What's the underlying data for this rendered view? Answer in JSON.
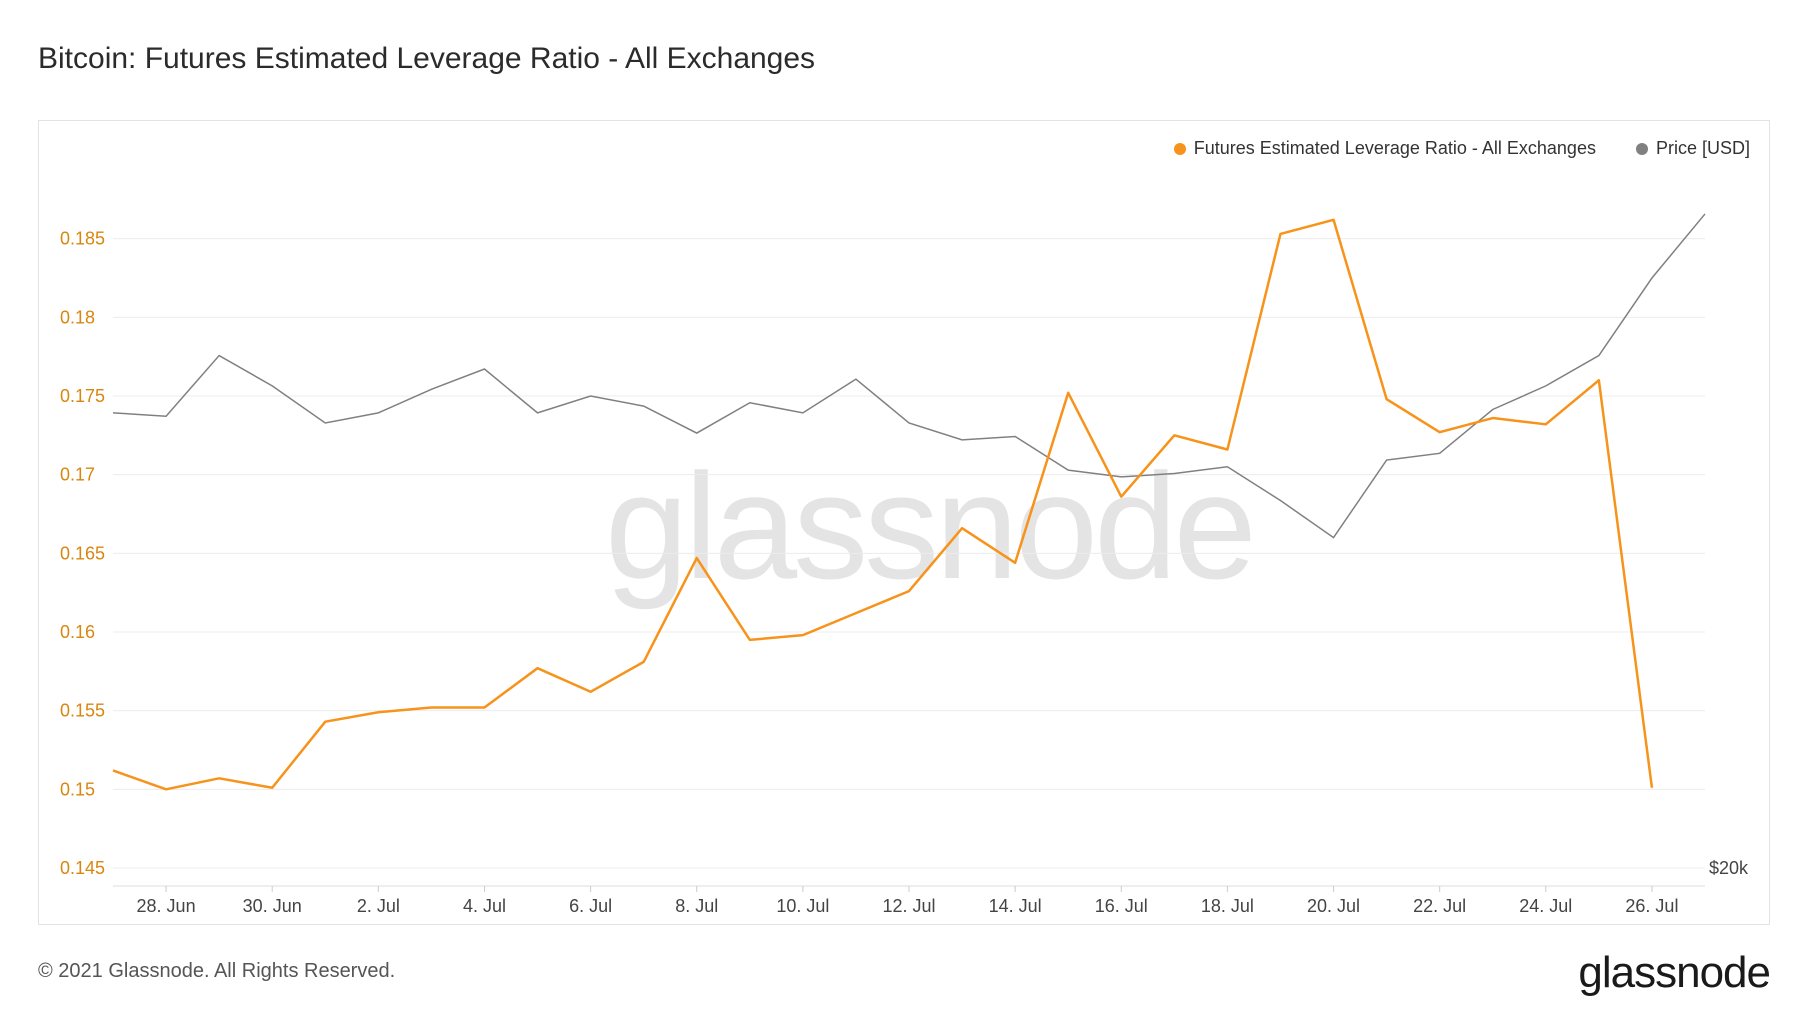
{
  "title": "Bitcoin: Futures Estimated Leverage Ratio - All Exchanges",
  "watermark": "glassnode",
  "footer": "© 2021 Glassnode. All Rights Reserved.",
  "brand": "glassnode",
  "colors": {
    "leverage": "#f7931a",
    "price": "#808080",
    "grid": "#ececec",
    "axis_left": "#d9860f"
  },
  "chart_data": {
    "type": "line",
    "title": "Bitcoin: Futures Estimated Leverage Ratio - All Exchanges",
    "legend_placement": "top-right",
    "grid": true,
    "x": [
      "2021-06-27",
      "2021-06-28",
      "2021-06-29",
      "2021-06-30",
      "2021-07-01",
      "2021-07-02",
      "2021-07-03",
      "2021-07-04",
      "2021-07-05",
      "2021-07-06",
      "2021-07-07",
      "2021-07-08",
      "2021-07-09",
      "2021-07-10",
      "2021-07-11",
      "2021-07-12",
      "2021-07-13",
      "2021-07-14",
      "2021-07-15",
      "2021-07-16",
      "2021-07-17",
      "2021-07-18",
      "2021-07-19",
      "2021-07-20",
      "2021-07-21",
      "2021-07-22",
      "2021-07-23",
      "2021-07-24",
      "2021-07-25",
      "2021-07-26",
      "2021-07-27"
    ],
    "x_tick_labels": [
      "28. Jun",
      "30. Jun",
      "2. Jul",
      "4. Jul",
      "6. Jul",
      "8. Jul",
      "10. Jul",
      "12. Jul",
      "14. Jul",
      "16. Jul",
      "18. Jul",
      "20. Jul",
      "22. Jul",
      "24. Jul",
      "26. Jul"
    ],
    "y_left": {
      "ticks": [
        "0.145",
        "0.15",
        "0.155",
        "0.16",
        "0.165",
        "0.17",
        "0.175",
        "0.18",
        "0.185"
      ],
      "range": [
        0.145,
        0.19
      ]
    },
    "y_right": {
      "ticks": [
        "$20k"
      ]
    },
    "series": [
      {
        "name": "Futures Estimated Leverage Ratio - All Exchanges",
        "axis": "left",
        "color": "#f7931a",
        "values": [
          0.1512,
          0.15,
          0.1507,
          0.1501,
          0.1543,
          0.1549,
          0.1552,
          0.1552,
          0.1577,
          0.1562,
          0.1581,
          0.1647,
          0.1595,
          0.1598,
          0.1612,
          0.1626,
          0.1666,
          0.1644,
          0.1752,
          0.1686,
          0.1725,
          0.1716,
          0.1853,
          0.1862,
          0.1748,
          0.1727,
          0.1736,
          0.1732,
          0.176,
          0.1501,
          null
        ]
      },
      {
        "name": "Price [USD]",
        "axis": "right",
        "color": "#808080",
        "values": [
          33500,
          33400,
          35200,
          34300,
          33200,
          33500,
          34200,
          34800,
          33500,
          34000,
          33700,
          32900,
          33800,
          33500,
          34500,
          33200,
          32700,
          32800,
          31800,
          31600,
          31700,
          31900,
          30900,
          29800,
          32100,
          32300,
          33600,
          34300,
          35200,
          37500,
          39400
        ]
      }
    ]
  }
}
